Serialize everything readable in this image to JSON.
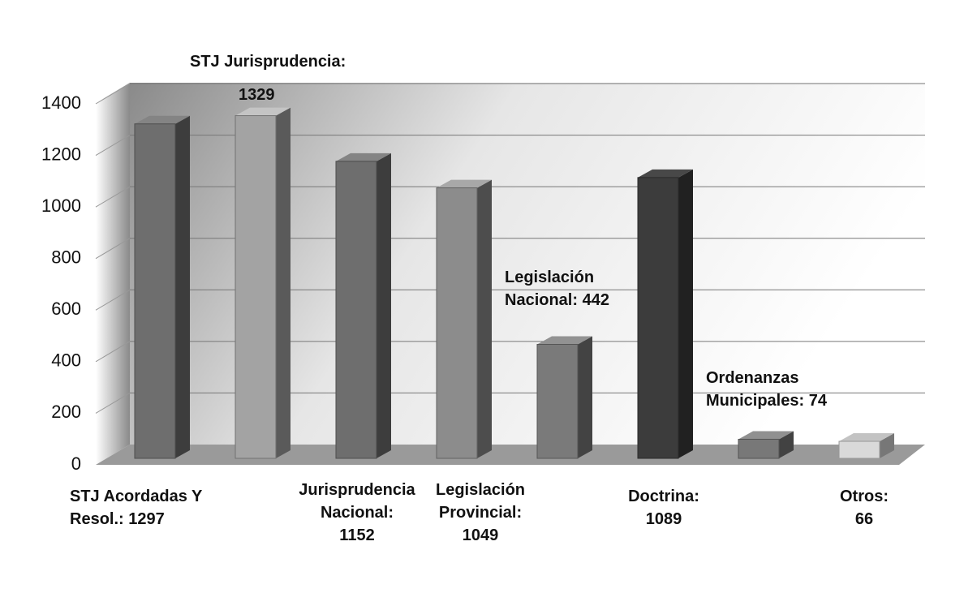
{
  "chart_data": {
    "type": "bar3d",
    "categories": [
      "STJ Acordadas Y Resol.:",
      "STJ Jurisprudencia:",
      "Jurisprudencia Nacional:",
      "Legislación Provincial:",
      "Legislación Nacional:",
      "Doctrina:",
      "Ordenanzas Municipales:",
      "Otros:"
    ],
    "values": [
      1297,
      1329,
      1152,
      1049,
      442,
      1089,
      74,
      66
    ],
    "colors": [
      "#6e6e6e",
      "#a3a3a3",
      "#6e6e6e",
      "#8c8c8c",
      "#7a7a7a",
      "#3c3c3c",
      "#787878",
      "#d9d9d9"
    ],
    "ylim": [
      0,
      1400
    ],
    "yticks": [
      0,
      200,
      400,
      600,
      800,
      1000,
      1200,
      1400
    ],
    "grid": true
  }
}
